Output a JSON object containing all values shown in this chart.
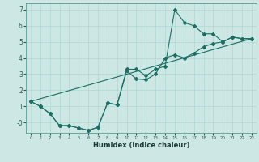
{
  "xlabel": "Humidex (Indice chaleur)",
  "background_color": "#cde8e4",
  "grid_color": "#b0d8d4",
  "line_color": "#1a6e64",
  "xlim": [
    -0.5,
    23.5
  ],
  "ylim": [
    -0.65,
    7.4
  ],
  "xticks": [
    0,
    1,
    2,
    3,
    4,
    5,
    6,
    7,
    8,
    9,
    10,
    11,
    12,
    13,
    14,
    15,
    16,
    17,
    18,
    19,
    20,
    21,
    22,
    23
  ],
  "yticks": [
    0,
    1,
    2,
    3,
    4,
    5,
    6,
    7
  ],
  "series": {
    "line1_x": [
      0,
      1,
      2,
      3,
      4,
      5,
      6,
      7,
      8,
      9,
      10,
      11,
      12,
      13,
      14,
      15,
      16,
      17,
      18,
      19,
      20,
      21,
      22,
      23
    ],
    "line1_y": [
      1.3,
      1.0,
      0.55,
      -0.2,
      -0.2,
      -0.35,
      -0.5,
      -0.3,
      1.2,
      1.1,
      3.3,
      3.3,
      2.9,
      3.3,
      3.5,
      7.0,
      6.2,
      6.0,
      5.5,
      5.5,
      5.0,
      5.3,
      5.2,
      5.2
    ],
    "line2_x": [
      0,
      1,
      2,
      3,
      4,
      5,
      6,
      7,
      8,
      9,
      10,
      11,
      12,
      13,
      14,
      15,
      16,
      17,
      18,
      19,
      20,
      21,
      22,
      23
    ],
    "line2_y": [
      1.3,
      1.0,
      0.55,
      -0.2,
      -0.2,
      -0.35,
      -0.5,
      -0.3,
      1.2,
      1.1,
      3.2,
      2.7,
      2.65,
      3.0,
      4.0,
      4.2,
      4.0,
      4.3,
      4.7,
      4.9,
      5.0,
      5.3,
      5.2,
      5.2
    ],
    "line3_x": [
      0,
      23
    ],
    "line3_y": [
      1.3,
      5.2
    ]
  }
}
